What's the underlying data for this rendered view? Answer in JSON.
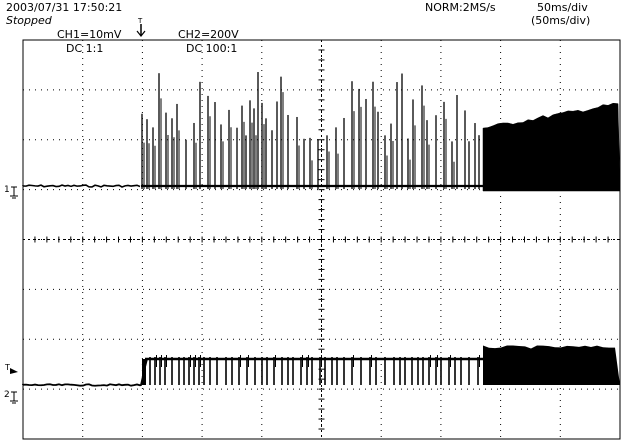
{
  "header": {
    "datetime": "2003/07/31  17:50:21",
    "status": "Stopped",
    "mode": "NORM:2MS/s",
    "timebase": "50ms/div",
    "timebase_zoom": "(50ms/div)"
  },
  "channels": [
    {
      "name": "CH1=10mV",
      "coupling": "DC  1:1",
      "marker": "1"
    },
    {
      "name": "CH2=200V",
      "coupling": "DC  100:1",
      "marker": "2"
    }
  ],
  "markers": {
    "trigger_top": "T",
    "trigger_left": "T"
  },
  "grid": {
    "divisions_x": 10,
    "divisions_y": 8
  },
  "colors": {
    "trace": "#000000",
    "grid": "#000000",
    "background": "#ffffff"
  }
}
